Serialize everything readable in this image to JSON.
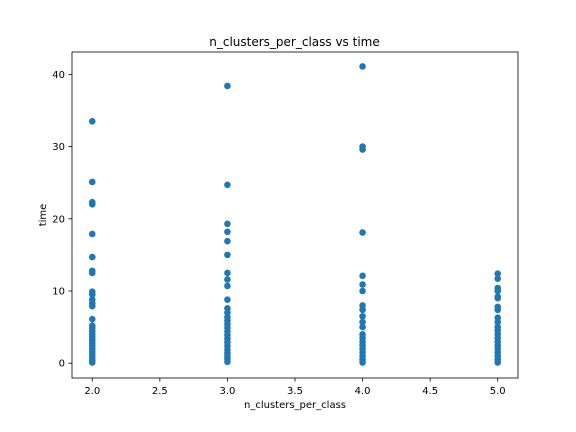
{
  "chart_data": {
    "type": "scatter",
    "title": "n_clusters_per_class vs time",
    "xlabel": "n_clusters_per_class",
    "ylabel": "time",
    "xlim": [
      1.85,
      5.15
    ],
    "ylim": [
      -2.05,
      43.1
    ],
    "xticks": [
      2.0,
      2.5,
      3.0,
      3.5,
      4.0,
      4.5,
      5.0
    ],
    "xtick_labels": [
      "2.0",
      "2.5",
      "3.0",
      "3.5",
      "4.0",
      "4.5",
      "5.0"
    ],
    "yticks": [
      0,
      10,
      20,
      30,
      40
    ],
    "ytick_labels": [
      "0",
      "10",
      "20",
      "30",
      "40"
    ],
    "grid": false,
    "marker_color": "#1f77b4",
    "points": [
      {
        "x": 2.0,
        "y": 33.5
      },
      {
        "x": 2.0,
        "y": 25.1
      },
      {
        "x": 2.0,
        "y": 22.3
      },
      {
        "x": 2.0,
        "y": 22.0
      },
      {
        "x": 2.0,
        "y": 17.9
      },
      {
        "x": 2.0,
        "y": 14.7
      },
      {
        "x": 2.0,
        "y": 12.8
      },
      {
        "x": 2.0,
        "y": 12.5
      },
      {
        "x": 2.0,
        "y": 9.9
      },
      {
        "x": 2.0,
        "y": 9.5
      },
      {
        "x": 2.0,
        "y": 8.8
      },
      {
        "x": 2.0,
        "y": 8.3
      },
      {
        "x": 2.0,
        "y": 7.9
      },
      {
        "x": 2.0,
        "y": 6.1
      },
      {
        "x": 2.0,
        "y": 5.2
      },
      {
        "x": 2.0,
        "y": 4.8
      },
      {
        "x": 2.0,
        "y": 4.4
      },
      {
        "x": 2.0,
        "y": 4.0
      },
      {
        "x": 2.0,
        "y": 3.6
      },
      {
        "x": 2.0,
        "y": 3.2
      },
      {
        "x": 2.0,
        "y": 2.8
      },
      {
        "x": 2.0,
        "y": 2.4
      },
      {
        "x": 2.0,
        "y": 2.0
      },
      {
        "x": 2.0,
        "y": 1.6
      },
      {
        "x": 2.0,
        "y": 1.2
      },
      {
        "x": 2.0,
        "y": 0.8
      },
      {
        "x": 2.0,
        "y": 0.4
      },
      {
        "x": 2.0,
        "y": 0.1
      },
      {
        "x": 3.0,
        "y": 38.4
      },
      {
        "x": 3.0,
        "y": 24.7
      },
      {
        "x": 3.0,
        "y": 19.3
      },
      {
        "x": 3.0,
        "y": 18.2
      },
      {
        "x": 3.0,
        "y": 16.9
      },
      {
        "x": 3.0,
        "y": 15.0
      },
      {
        "x": 3.0,
        "y": 12.5
      },
      {
        "x": 3.0,
        "y": 11.6
      },
      {
        "x": 3.0,
        "y": 10.7
      },
      {
        "x": 3.0,
        "y": 8.8
      },
      {
        "x": 3.0,
        "y": 7.6
      },
      {
        "x": 3.0,
        "y": 7.0
      },
      {
        "x": 3.0,
        "y": 6.4
      },
      {
        "x": 3.0,
        "y": 5.9
      },
      {
        "x": 3.0,
        "y": 5.4
      },
      {
        "x": 3.0,
        "y": 4.9
      },
      {
        "x": 3.0,
        "y": 4.4
      },
      {
        "x": 3.0,
        "y": 3.9
      },
      {
        "x": 3.0,
        "y": 3.4
      },
      {
        "x": 3.0,
        "y": 2.9
      },
      {
        "x": 3.0,
        "y": 2.4
      },
      {
        "x": 3.0,
        "y": 1.9
      },
      {
        "x": 3.0,
        "y": 1.4
      },
      {
        "x": 3.0,
        "y": 1.0
      },
      {
        "x": 3.0,
        "y": 0.6
      },
      {
        "x": 3.0,
        "y": 0.2
      },
      {
        "x": 4.0,
        "y": 41.1
      },
      {
        "x": 4.0,
        "y": 30.0
      },
      {
        "x": 4.0,
        "y": 29.6
      },
      {
        "x": 4.0,
        "y": 18.1
      },
      {
        "x": 4.0,
        "y": 12.1
      },
      {
        "x": 4.0,
        "y": 10.9
      },
      {
        "x": 4.0,
        "y": 10.0
      },
      {
        "x": 4.0,
        "y": 8.0
      },
      {
        "x": 4.0,
        "y": 7.4
      },
      {
        "x": 4.0,
        "y": 6.5
      },
      {
        "x": 4.0,
        "y": 5.7
      },
      {
        "x": 4.0,
        "y": 5.0
      },
      {
        "x": 4.0,
        "y": 4.0
      },
      {
        "x": 4.0,
        "y": 3.5
      },
      {
        "x": 4.0,
        "y": 3.0
      },
      {
        "x": 4.0,
        "y": 2.5
      },
      {
        "x": 4.0,
        "y": 2.0
      },
      {
        "x": 4.0,
        "y": 1.5
      },
      {
        "x": 4.0,
        "y": 1.0
      },
      {
        "x": 4.0,
        "y": 0.5
      },
      {
        "x": 4.0,
        "y": 0.1
      },
      {
        "x": 5.0,
        "y": 12.4
      },
      {
        "x": 5.0,
        "y": 11.7
      },
      {
        "x": 5.0,
        "y": 10.4
      },
      {
        "x": 5.0,
        "y": 10.0
      },
      {
        "x": 5.0,
        "y": 9.2
      },
      {
        "x": 5.0,
        "y": 9.0
      },
      {
        "x": 5.0,
        "y": 7.8
      },
      {
        "x": 5.0,
        "y": 7.4
      },
      {
        "x": 5.0,
        "y": 6.3
      },
      {
        "x": 5.0,
        "y": 5.7
      },
      {
        "x": 5.0,
        "y": 5.0
      },
      {
        "x": 5.0,
        "y": 4.5
      },
      {
        "x": 5.0,
        "y": 4.0
      },
      {
        "x": 5.0,
        "y": 3.5
      },
      {
        "x": 5.0,
        "y": 3.0
      },
      {
        "x": 5.0,
        "y": 2.5
      },
      {
        "x": 5.0,
        "y": 2.0
      },
      {
        "x": 5.0,
        "y": 1.5
      },
      {
        "x": 5.0,
        "y": 1.0
      },
      {
        "x": 5.0,
        "y": 0.5
      },
      {
        "x": 5.0,
        "y": 0.1
      }
    ]
  }
}
